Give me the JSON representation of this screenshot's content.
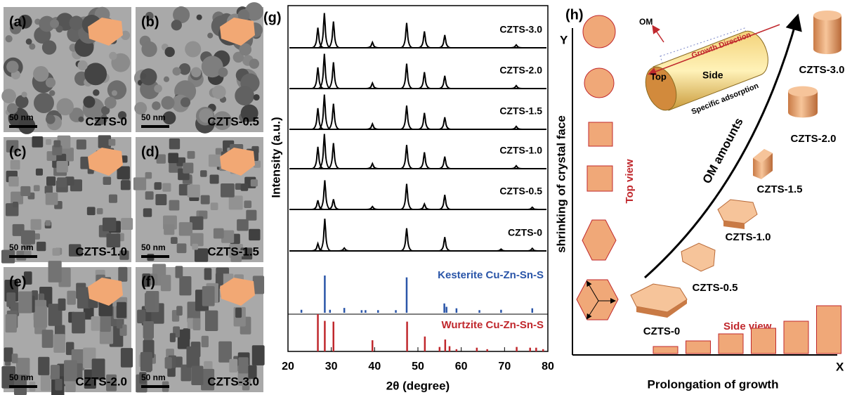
{
  "tem_panels": [
    {
      "label": "(a)",
      "sample": "CZTS-0",
      "scale": "50 nm"
    },
    {
      "label": "(b)",
      "sample": "CZTS-0.5",
      "scale": "50 nm"
    },
    {
      "label": "(c)",
      "sample": "CZTS-1.0",
      "scale": "50 nm"
    },
    {
      "label": "(d)",
      "sample": "CZTS-1.5",
      "scale": "50 nm"
    },
    {
      "label": "(e)",
      "sample": "CZTS-2.0",
      "scale": "50 nm"
    },
    {
      "label": "(f)",
      "sample": "CZTS-3.0",
      "scale": "50 nm"
    }
  ],
  "chart_data": {
    "type": "xrd",
    "panel_label": "(g)",
    "xlabel": "2θ (degree)",
    "ylabel": "Intensity (a.u.)",
    "xlim": [
      20,
      80
    ],
    "xticks": [
      20,
      30,
      40,
      50,
      60,
      70,
      80
    ],
    "series": [
      {
        "name": "CZTS-3.0",
        "color": "#000000",
        "peaks": [
          26.9,
          28.4,
          30.5,
          39.5,
          47.4,
          51.5,
          56.2,
          72.7
        ],
        "heights": [
          55,
          95,
          72,
          15,
          68,
          45,
          35,
          8
        ]
      },
      {
        "name": "CZTS-2.0",
        "color": "#000000",
        "peaks": [
          26.9,
          28.4,
          30.5,
          39.5,
          47.4,
          51.5,
          56.2,
          72.7
        ],
        "heights": [
          58,
          95,
          72,
          15,
          68,
          45,
          35,
          8
        ]
      },
      {
        "name": "CZTS-1.5",
        "color": "#000000",
        "peaks": [
          26.9,
          28.4,
          30.5,
          39.5,
          47.4,
          51.5,
          56.2,
          72.7
        ],
        "heights": [
          58,
          95,
          70,
          15,
          65,
          45,
          33,
          8
        ]
      },
      {
        "name": "CZTS-1.0",
        "color": "#000000",
        "peaks": [
          26.9,
          28.4,
          30.5,
          39.5,
          47.4,
          51.5,
          56.2,
          72.7
        ],
        "heights": [
          60,
          95,
          70,
          14,
          65,
          45,
          33,
          8
        ]
      },
      {
        "name": "CZTS-0.5",
        "color": "#000000",
        "peaks": [
          26.9,
          28.5,
          30.5,
          39.5,
          47.4,
          51.5,
          56.2,
          76.4
        ],
        "heights": [
          25,
          80,
          28,
          8,
          70,
          15,
          40,
          6
        ]
      },
      {
        "name": "CZTS-0",
        "color": "#000000",
        "peaks": [
          26.9,
          28.5,
          33.0,
          47.4,
          56.2,
          69.2,
          76.4
        ],
        "heights": [
          20,
          88,
          8,
          62,
          38,
          5,
          7
        ]
      }
    ],
    "references": [
      {
        "name": "Kesterite Cu-Zn-Sn-S",
        "color": "#2a55a8",
        "positions": [
          23.1,
          28.5,
          29.7,
          33.0,
          37.0,
          37.9,
          40.8,
          44.9,
          47.4,
          56.1,
          56.6,
          58.9,
          64.2,
          69.2,
          76.4
        ],
        "heights": [
          8,
          100,
          8,
          13,
          7,
          7,
          7,
          7,
          95,
          25,
          16,
          12,
          7,
          8,
          12
        ]
      },
      {
        "name": "Wurtzite Cu-Zn-Sn-S",
        "color": "#c0282d",
        "positions": [
          26.9,
          28.5,
          30.5,
          39.5,
          47.5,
          51.6,
          55.0,
          56.3,
          57.3,
          58.9,
          63.6,
          66.0,
          72.8,
          75.9,
          77.3,
          78.9
        ],
        "heights": [
          100,
          82,
          80,
          30,
          80,
          40,
          12,
          32,
          14,
          6,
          10,
          6,
          12,
          10,
          10,
          6
        ]
      }
    ]
  },
  "schematic": {
    "panel_label": "(h)",
    "y_axis": "Y",
    "x_axis": "X",
    "y_label": "shrinking of crystal face",
    "x_label": "Prolongation of growth",
    "top_view": "Top view",
    "side_view": "Side view",
    "arrow_label": "OM amounts",
    "inset": {
      "om": "OM",
      "direction": "Growth Direction",
      "top": "Top",
      "side": "Side",
      "adsorption": "Specific adsorption"
    },
    "samples": [
      "CZTS-3.0",
      "CZTS-2.0",
      "CZTS-1.5",
      "CZTS-1.0",
      "CZTS-0.5",
      "CZTS-0"
    ]
  }
}
